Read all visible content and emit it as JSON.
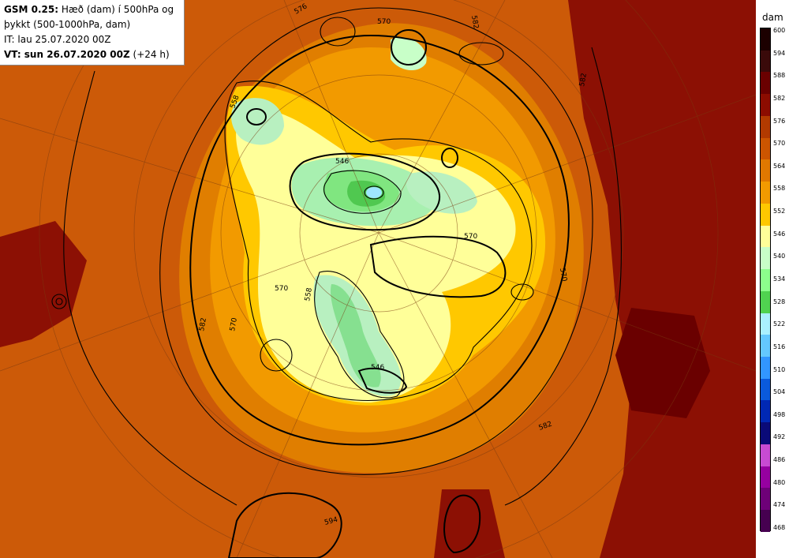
{
  "title": {
    "model": "GSM 0.25:",
    "description_line1": "Hæð (dam) í 500hPa og",
    "description_line2": "þykkt (500-1000hPa, dam)",
    "initial_time": "IT: lau 25.07.2020 00Z",
    "valid_label": "VT: sun 26.07.2020 00Z",
    "valid_offset": "(+24 h)"
  },
  "legend": {
    "unit": "dam",
    "levels": [
      "600",
      "594",
      "588",
      "582",
      "576",
      "570",
      "564",
      "558",
      "552",
      "546",
      "540",
      "534",
      "528",
      "522",
      "516",
      "510",
      "504",
      "498",
      "492",
      "486",
      "480",
      "474",
      "468"
    ],
    "colors": [
      "#1c0000",
      "#3a0a0a",
      "#6a0000",
      "#8c0c00",
      "#b23a00",
      "#cc5500",
      "#e07800",
      "#f29a00",
      "#ffc800",
      "#ffff99",
      "#c8ffc8",
      "#8cff8c",
      "#50d250",
      "#aaf0ff",
      "#64c8ff",
      "#3296ff",
      "#0a5adc",
      "#0028b4",
      "#0a0a78",
      "#c84bd2",
      "#9600a0",
      "#6e0078",
      "#460050"
    ]
  },
  "map": {
    "contour_labels": [
      "576",
      "582",
      "570",
      "558",
      "546",
      "570",
      "570",
      "558",
      "570",
      "582",
      "546",
      "582",
      "594",
      "570",
      "582"
    ]
  }
}
